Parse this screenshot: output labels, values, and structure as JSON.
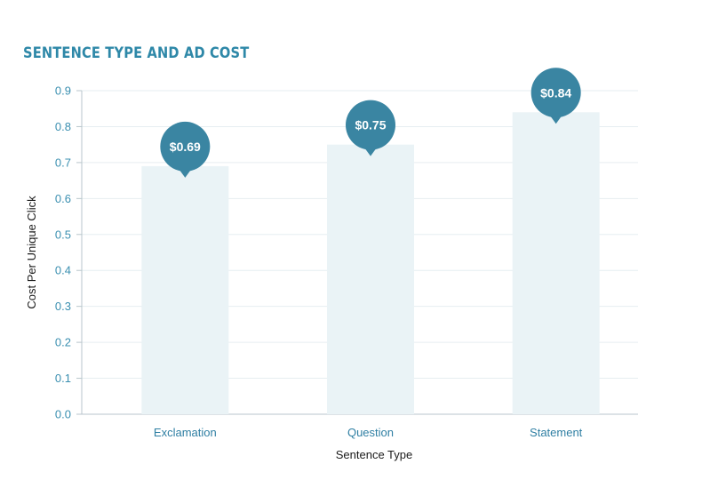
{
  "chart_data": {
    "type": "bar",
    "title": "SENTENCE TYPE AND AD COST",
    "xlabel": "Sentence Type",
    "ylabel": "Cost Per Unique Click",
    "categories": [
      "Exclamation",
      "Question",
      "Statement"
    ],
    "values": [
      0.69,
      0.75,
      0.84
    ],
    "data_labels": [
      "$0.69",
      "$0.75",
      "$0.84"
    ],
    "ylim": [
      0,
      0.9
    ],
    "yticks": [
      "0.0",
      "0.1",
      "0.2",
      "0.3",
      "0.4",
      "0.5",
      "0.6",
      "0.7",
      "0.8",
      "0.9"
    ],
    "grid": true,
    "colors": {
      "bar": "#eaf3f6",
      "bubble": "#3a85a2",
      "title": "#2e88a8",
      "tick": "#3a8fb0",
      "grid": "#e6eef1",
      "axis": "#b8c6cc"
    }
  }
}
